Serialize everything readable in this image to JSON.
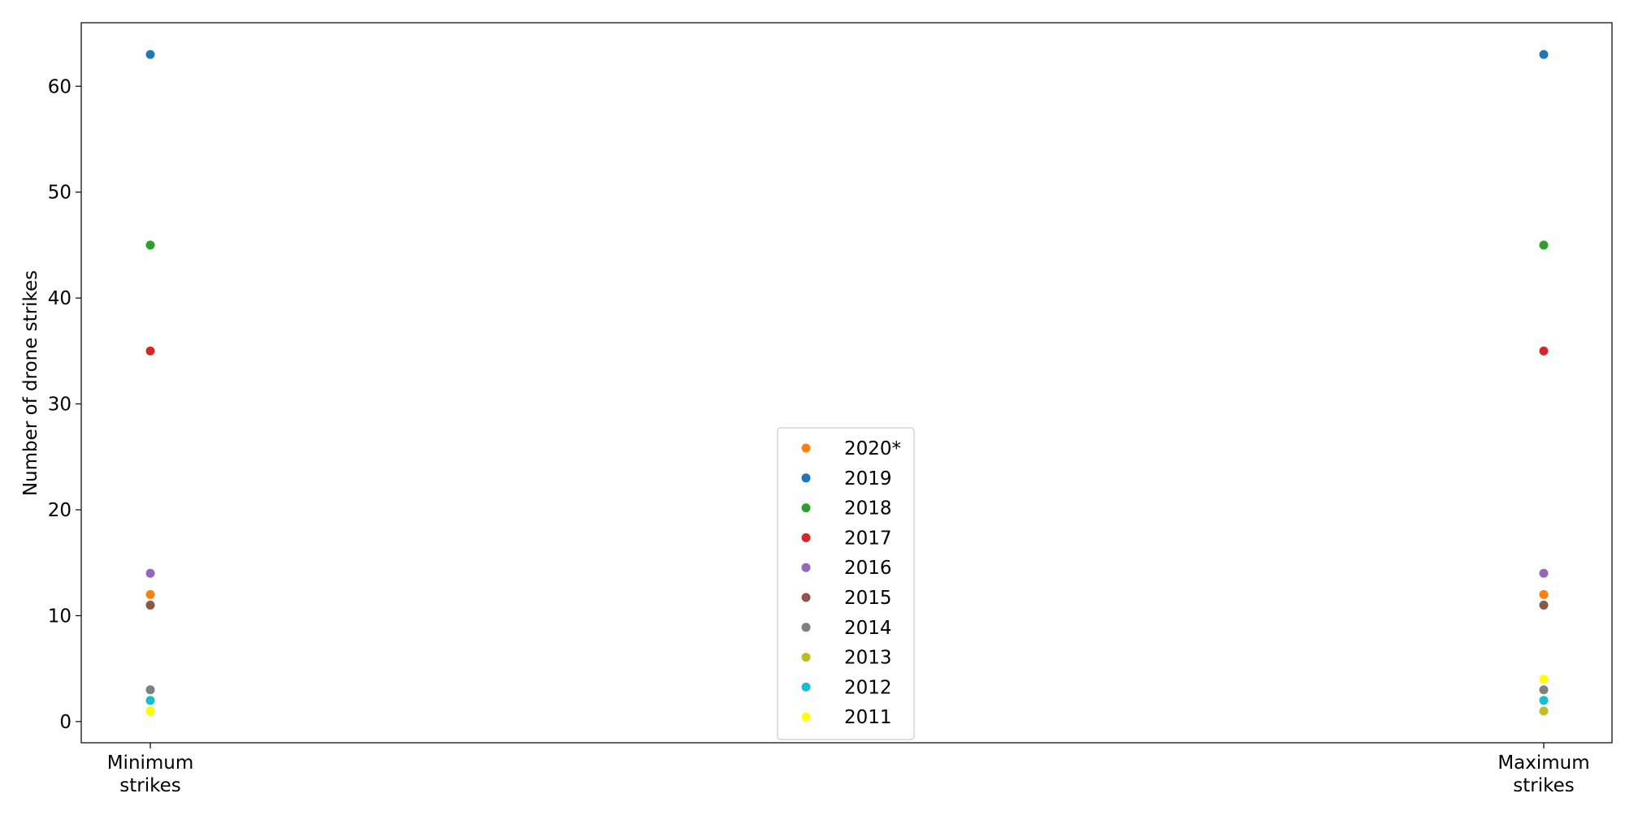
{
  "chart_data": {
    "type": "scatter",
    "categories": [
      "Minimum\nstrikes",
      "Maximum\nstrikes"
    ],
    "ylabel": "Number of drone strikes",
    "xlabel": "",
    "title": "",
    "ylim": [
      -2,
      66
    ],
    "yticks": [
      0,
      10,
      20,
      30,
      40,
      50,
      60
    ],
    "grid": false,
    "legend_position": "lower center",
    "series": [
      {
        "name": "2020*",
        "color": "#ff7f0e",
        "values": [
          12,
          12
        ]
      },
      {
        "name": "2019",
        "color": "#1f77b4",
        "values": [
          63,
          63
        ]
      },
      {
        "name": "2018",
        "color": "#2ca02c",
        "values": [
          45,
          45
        ]
      },
      {
        "name": "2017",
        "color": "#d62728",
        "values": [
          35,
          35
        ]
      },
      {
        "name": "2016",
        "color": "#9467bd",
        "values": [
          14,
          14
        ]
      },
      {
        "name": "2015",
        "color": "#8c564b",
        "values": [
          11,
          11
        ]
      },
      {
        "name": "2014",
        "color": "#7f7f7f",
        "values": [
          3,
          3
        ]
      },
      {
        "name": "2013",
        "color": "#bcbd22",
        "values": [
          1,
          1
        ]
      },
      {
        "name": "2012",
        "color": "#17becf",
        "values": [
          2,
          2
        ]
      },
      {
        "name": "2011",
        "color": "#ffff00",
        "values": [
          1,
          4
        ]
      }
    ]
  }
}
